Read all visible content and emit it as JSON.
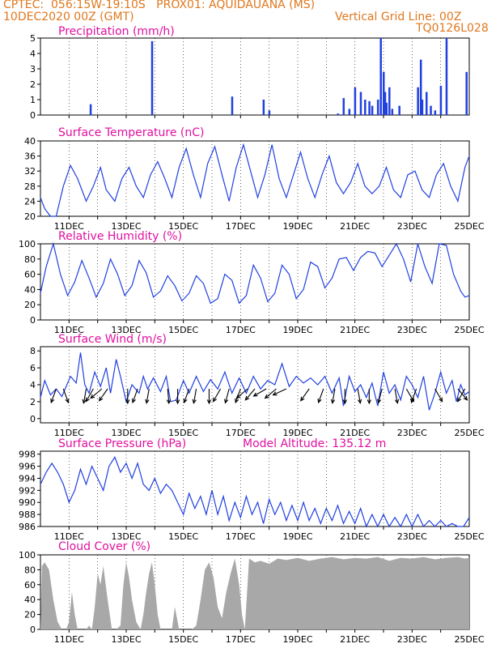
{
  "header": {
    "line1": "CPTEC:  056:15W-19:10S   PROX01: AQUIDAUANA (MS)",
    "line2_left": "10DEC2020 00Z (GMT)",
    "line2_right": "Vertical Grid Line: 00Z",
    "line3_right": "TQ0126L028"
  },
  "colors": {
    "header": "#e0781e",
    "title": "#e010a0",
    "series": "#2040e0",
    "cloud": "#a8a8a8",
    "arrow": "#000000"
  },
  "x_labels": [
    "11DEC",
    "13DEC",
    "15DEC",
    "17DEC",
    "19DEC",
    "21DEC",
    "23DEC",
    "25DEC"
  ],
  "chart_data": [
    {
      "id": "precip",
      "type": "bar",
      "title": "Precipitation (mm/h)",
      "ylim": [
        0,
        5
      ],
      "yticks": [
        0,
        1,
        2,
        3,
        4,
        5
      ],
      "x": [
        1.75,
        3.9,
        6.7,
        7.8,
        8.0,
        10.4,
        10.6,
        10.8,
        11.0,
        11.2,
        11.35,
        11.5,
        11.6,
        11.8,
        11.9,
        12.0,
        12.05,
        12.1,
        12.2,
        12.3,
        12.55,
        13.2,
        13.3,
        13.35,
        13.5,
        13.65,
        13.8,
        14.0,
        14.2,
        14.9
      ],
      "values": [
        0.7,
        4.8,
        1.2,
        1.0,
        0.3,
        0.1,
        1.1,
        0.4,
        1.8,
        1.5,
        1.0,
        0.9,
        0.6,
        1.0,
        5.0,
        2.8,
        1.5,
        0.8,
        1.8,
        0.4,
        0.6,
        1.8,
        3.6,
        1.0,
        1.5,
        0.6,
        0.3,
        1.9,
        5.0,
        2.8
      ]
    },
    {
      "id": "temp",
      "type": "line",
      "title": "Surface Temperature (nC)",
      "ylim": [
        20,
        40
      ],
      "yticks": [
        20,
        24,
        28,
        32,
        36,
        40
      ],
      "x": [
        0,
        0.15,
        0.35,
        0.55,
        0.8,
        1.05,
        1.3,
        1.6,
        1.85,
        2.1,
        2.3,
        2.6,
        2.85,
        3.1,
        3.35,
        3.6,
        3.85,
        4.1,
        4.35,
        4.6,
        4.85,
        5.1,
        5.35,
        5.6,
        5.85,
        6.1,
        6.35,
        6.6,
        6.85,
        7.1,
        7.35,
        7.6,
        7.85,
        8.1,
        8.35,
        8.6,
        8.85,
        9.1,
        9.35,
        9.6,
        9.85,
        10.1,
        10.35,
        10.6,
        10.85,
        11.1,
        11.35,
        11.6,
        11.85,
        12.1,
        12.35,
        12.6,
        12.85,
        13.1,
        13.35,
        13.6,
        13.85,
        14.1,
        14.35,
        14.6,
        14.85,
        15.0
      ],
      "values": [
        25,
        22,
        20,
        19.5,
        28,
        33.5,
        30,
        24,
        28,
        33,
        27,
        24,
        30,
        33,
        28,
        25,
        31,
        34.5,
        30,
        25,
        33,
        38,
        31,
        25,
        34,
        38.5,
        31,
        24,
        33,
        39,
        32,
        25,
        31,
        39,
        30,
        25,
        31,
        37,
        30,
        25,
        31,
        36,
        29,
        26,
        29,
        34,
        28,
        26,
        28,
        33,
        27,
        25,
        31,
        32,
        27,
        25,
        31,
        34,
        28,
        24,
        33,
        36
      ]
    },
    {
      "id": "rh",
      "type": "line",
      "title": "Relative Humidity (%)",
      "ylim": [
        0,
        100
      ],
      "yticks": [
        0,
        20,
        40,
        60,
        80,
        100
      ],
      "x": [
        0,
        0.2,
        0.45,
        0.7,
        0.95,
        1.2,
        1.45,
        1.7,
        1.95,
        2.2,
        2.45,
        2.7,
        2.95,
        3.2,
        3.45,
        3.7,
        3.95,
        4.2,
        4.45,
        4.7,
        4.95,
        5.2,
        5.45,
        5.7,
        5.95,
        6.2,
        6.45,
        6.7,
        6.95,
        7.2,
        7.45,
        7.7,
        7.95,
        8.2,
        8.45,
        8.7,
        8.95,
        9.2,
        9.45,
        9.7,
        9.95,
        10.2,
        10.45,
        10.7,
        10.95,
        11.2,
        11.45,
        11.7,
        11.95,
        12.2,
        12.45,
        12.7,
        12.95,
        13.2,
        13.45,
        13.7,
        13.95,
        14.2,
        14.45,
        14.7,
        14.85,
        15.0
      ],
      "values": [
        35,
        70,
        100,
        60,
        32,
        50,
        78,
        55,
        30,
        48,
        80,
        60,
        32,
        45,
        78,
        62,
        30,
        38,
        58,
        45,
        25,
        35,
        58,
        48,
        22,
        28,
        60,
        52,
        22,
        32,
        72,
        55,
        24,
        35,
        72,
        60,
        28,
        40,
        76,
        70,
        42,
        55,
        80,
        82,
        65,
        82,
        90,
        88,
        70,
        85,
        100,
        80,
        50,
        100,
        70,
        48,
        100,
        98,
        60,
        38,
        30,
        32
      ]
    },
    {
      "id": "wind",
      "type": "line",
      "title": "Surface Wind (m/s)",
      "ylim": [
        -0.5,
        8.5
      ],
      "yticks": [
        0,
        2,
        4,
        6,
        8
      ],
      "x": [
        0,
        0.15,
        0.35,
        0.55,
        0.75,
        0.9,
        1.05,
        1.25,
        1.4,
        1.55,
        1.7,
        1.9,
        2.1,
        2.3,
        2.45,
        2.65,
        2.8,
        3.0,
        3.2,
        3.45,
        3.6,
        3.75,
        3.95,
        4.2,
        4.4,
        4.55,
        4.75,
        5.0,
        5.2,
        5.45,
        5.7,
        5.95,
        6.2,
        6.45,
        6.7,
        6.95,
        7.2,
        7.45,
        7.7,
        7.95,
        8.2,
        8.45,
        8.7,
        8.95,
        9.2,
        9.45,
        9.7,
        9.95,
        10.2,
        10.45,
        10.6,
        10.8,
        11.0,
        11.2,
        11.4,
        11.6,
        11.8,
        12.0,
        12.2,
        12.4,
        12.6,
        12.8,
        13.0,
        13.2,
        13.4,
        13.6,
        13.8,
        14.0,
        14.2,
        14.4,
        14.55,
        14.7,
        14.85,
        15.0
      ],
      "values": [
        2.5,
        4.5,
        2.8,
        3.5,
        2.6,
        3.8,
        5.0,
        4.2,
        7.8,
        4.0,
        3.0,
        5.5,
        3.8,
        6.0,
        3.0,
        7.0,
        5.0,
        2.0,
        4.0,
        3.0,
        5.0,
        3.5,
        4.8,
        3.2,
        5.0,
        2.0,
        2.2,
        4.5,
        3.0,
        5.0,
        3.2,
        4.6,
        3.5,
        5.5,
        3.0,
        4.8,
        3.0,
        5.0,
        3.5,
        4.5,
        4.0,
        6.5,
        3.8,
        5.0,
        4.2,
        4.8,
        4.0,
        5.0,
        3.0,
        4.8,
        1.5,
        5.0,
        3.2,
        4.0,
        2.5,
        4.2,
        1.5,
        5.5,
        3.0,
        4.0,
        2.2,
        5.0,
        4.0,
        2.5,
        5.0,
        1.0,
        3.0,
        5.5,
        3.0,
        4.5,
        2.0,
        4.0,
        2.8,
        3.2
      ]
    },
    {
      "id": "pressure",
      "type": "line",
      "title": "Surface Pressure (hPa)",
      "subtitle": "Model Altitude: 135.12 m",
      "ylim": [
        986,
        998.5
      ],
      "yticks": [
        986,
        988,
        990,
        992,
        994,
        996,
        998
      ],
      "x": [
        0,
        0.2,
        0.4,
        0.6,
        0.8,
        1.0,
        1.2,
        1.4,
        1.6,
        1.8,
        2.0,
        2.2,
        2.4,
        2.6,
        2.8,
        3.0,
        3.2,
        3.4,
        3.6,
        3.8,
        4.0,
        4.2,
        4.4,
        4.6,
        4.8,
        5.0,
        5.2,
        5.4,
        5.6,
        5.8,
        6.0,
        6.2,
        6.4,
        6.6,
        6.8,
        7.0,
        7.2,
        7.4,
        7.6,
        7.8,
        8.0,
        8.2,
        8.4,
        8.6,
        8.8,
        9.0,
        9.2,
        9.4,
        9.6,
        9.8,
        10.0,
        10.2,
        10.4,
        10.6,
        10.8,
        11.0,
        11.2,
        11.4,
        11.6,
        11.8,
        12.0,
        12.2,
        12.4,
        12.6,
        12.8,
        13.0,
        13.2,
        13.4,
        13.6,
        13.8,
        14.0,
        14.2,
        14.4,
        14.6,
        14.8,
        15.0
      ],
      "values": [
        993,
        995,
        996.5,
        995,
        993,
        990,
        992,
        995.5,
        993,
        996,
        994,
        992,
        996,
        997.5,
        995,
        996.5,
        994,
        996.5,
        993,
        992,
        994,
        991.5,
        993,
        992,
        990,
        988,
        991.5,
        989,
        991,
        988,
        992,
        988,
        991,
        987,
        990,
        987.5,
        991,
        988,
        990,
        986.5,
        990.5,
        988,
        990,
        987,
        989.5,
        987,
        990,
        987,
        989,
        986.5,
        989,
        987,
        989.5,
        986.5,
        988.5,
        986.5,
        989,
        985.5,
        988,
        985,
        988,
        985.5,
        987.5,
        986,
        988,
        985.5,
        988,
        985,
        987,
        984.5,
        987,
        985,
        986.5,
        985,
        986,
        987.5
      ]
    },
    {
      "id": "cloud",
      "type": "area",
      "title": "Cloud Cover (%)",
      "ylim": [
        0,
        100
      ],
      "yticks": [
        0,
        20,
        40,
        60,
        80,
        100
      ],
      "x": [
        0,
        0.05,
        0.15,
        0.3,
        0.45,
        0.6,
        0.75,
        0.9,
        1.0,
        1.1,
        1.2,
        1.3,
        1.45,
        1.6,
        1.7,
        1.8,
        1.9,
        2.0,
        2.1,
        2.2,
        2.35,
        2.5,
        2.65,
        2.8,
        2.9,
        3.0,
        3.1,
        3.2,
        3.35,
        3.5,
        3.6,
        3.7,
        3.8,
        3.9,
        4.0,
        4.1,
        4.2,
        4.35,
        4.5,
        4.6,
        4.7,
        4.85,
        5.0,
        5.15,
        5.3,
        5.45,
        5.6,
        5.75,
        5.9,
        6.05,
        6.2,
        6.35,
        6.5,
        6.65,
        6.8,
        6.95,
        7.05,
        7.15,
        7.3,
        7.5,
        7.7,
        8.0,
        8.3,
        8.6,
        9.0,
        9.4,
        9.8,
        10.2,
        10.6,
        11.0,
        11.4,
        11.8,
        12.2,
        12.6,
        13.0,
        13.4,
        13.8,
        14.2,
        14.6,
        14.85,
        15.0
      ],
      "values": [
        0,
        85,
        90,
        80,
        40,
        10,
        0,
        0,
        10,
        50,
        20,
        0,
        0,
        0,
        5,
        0,
        30,
        75,
        60,
        85,
        40,
        0,
        0,
        5,
        60,
        90,
        70,
        40,
        10,
        0,
        20,
        50,
        75,
        90,
        60,
        20,
        0,
        0,
        0,
        0,
        30,
        0,
        0,
        0,
        0,
        5,
        40,
        80,
        90,
        70,
        30,
        15,
        50,
        75,
        95,
        60,
        20,
        0,
        95,
        90,
        92,
        88,
        95,
        93,
        96,
        92,
        95,
        97,
        94,
        96,
        95,
        97,
        92,
        96,
        95,
        97,
        94,
        96,
        97,
        95,
        96
      ]
    }
  ],
  "wind_arrows": {
    "x": [
      0.55,
      0.8,
      1.6,
      1.85,
      2.15,
      2.35,
      3.05,
      3.4,
      3.8,
      4.45,
      4.8,
      5.2,
      5.45,
      5.9,
      6.3,
      6.6,
      7.0,
      7.25,
      7.5,
      7.9,
      8.25,
      8.6,
      9.4,
      9.9,
      10.3,
      10.65,
      11.1,
      11.5,
      11.95,
      12.4,
      12.8,
      13.15,
      13.8,
      14.6,
      14.85
    ],
    "dir_deg": [
      200,
      160,
      190,
      210,
      230,
      215,
      180,
      200,
      190,
      175,
      180,
      200,
      190,
      180,
      210,
      195,
      200,
      230,
      220,
      240,
      230,
      245,
      215,
      200,
      190,
      180,
      170,
      180,
      195,
      170,
      150,
      200,
      150,
      140,
      210
    ]
  }
}
